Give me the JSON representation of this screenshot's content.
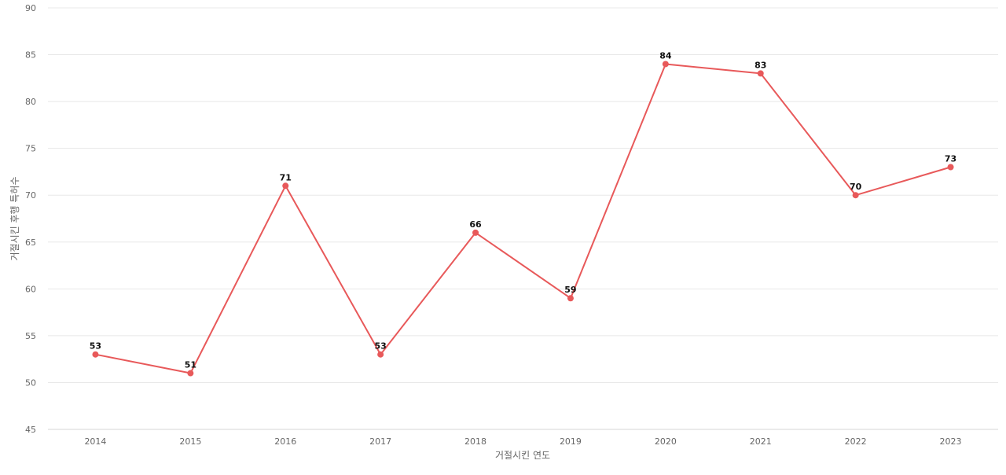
{
  "chart_data": {
    "type": "line",
    "title": "",
    "xlabel": "거절시킨 연도",
    "ylabel": "거절시킨 후행 특허수",
    "categories": [
      "2014",
      "2015",
      "2016",
      "2017",
      "2018",
      "2019",
      "2020",
      "2021",
      "2022",
      "2023"
    ],
    "series": [
      {
        "values": [
          53,
          51,
          71,
          53,
          66,
          59,
          84,
          83,
          70,
          73
        ],
        "color": "#e8595a"
      }
    ],
    "ylim": [
      45,
      90
    ],
    "yticks": [
      "45",
      "50",
      "55",
      "60",
      "65",
      "70",
      "75",
      "80",
      "85",
      "90"
    ],
    "data_labels": [
      "53",
      "51",
      "71",
      "53",
      "66",
      "59",
      "84",
      "83",
      "70",
      "73"
    ],
    "grid": true,
    "legend": "none"
  }
}
